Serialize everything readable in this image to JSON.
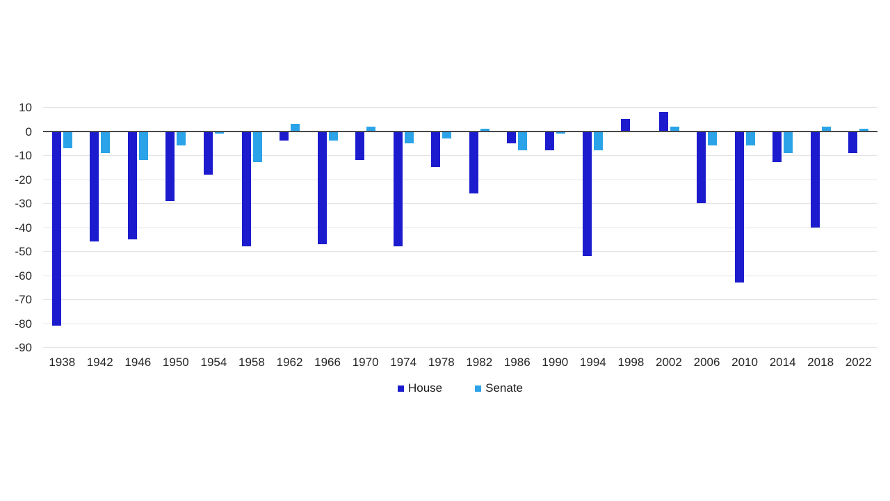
{
  "chart_data": {
    "type": "bar",
    "title": "",
    "xlabel": "",
    "ylabel": "",
    "categories": [
      "1938",
      "1942",
      "1946",
      "1950",
      "1954",
      "1958",
      "1962",
      "1966",
      "1970",
      "1974",
      "1978",
      "1982",
      "1986",
      "1990",
      "1994",
      "1998",
      "2002",
      "2006",
      "2010",
      "2014",
      "2018",
      "2022"
    ],
    "series": [
      {
        "name": "House",
        "color": "#1c1cce",
        "values": [
          -81,
          -46,
          -45,
          -29,
          -18,
          -48,
          -4,
          -47,
          -12,
          -48,
          -15,
          -26,
          -5,
          -8,
          -52,
          5,
          8,
          -30,
          -63,
          -13,
          -40,
          -9
        ]
      },
      {
        "name": "Senate",
        "color": "#2ba3e8",
        "values": [
          -7,
          -9,
          -12,
          -6,
          -1,
          -13,
          3,
          -4,
          2,
          -5,
          -3,
          1,
          -8,
          -1,
          -8,
          0,
          2,
          -6,
          -6,
          -9,
          2,
          1
        ]
      }
    ],
    "ylim": [
      -90,
      10
    ],
    "yticks": [
      10,
      0,
      -10,
      -20,
      -30,
      -40,
      -50,
      -60,
      -70,
      -80,
      -90
    ],
    "grid": "horizontal",
    "legend_position": "bottom",
    "gridline_color": "#e3e3e3",
    "zero_line_color": "#4a4a4a",
    "text_color": "#262626"
  },
  "legend": {
    "house_label": "House",
    "senate_label": "Senate"
  }
}
